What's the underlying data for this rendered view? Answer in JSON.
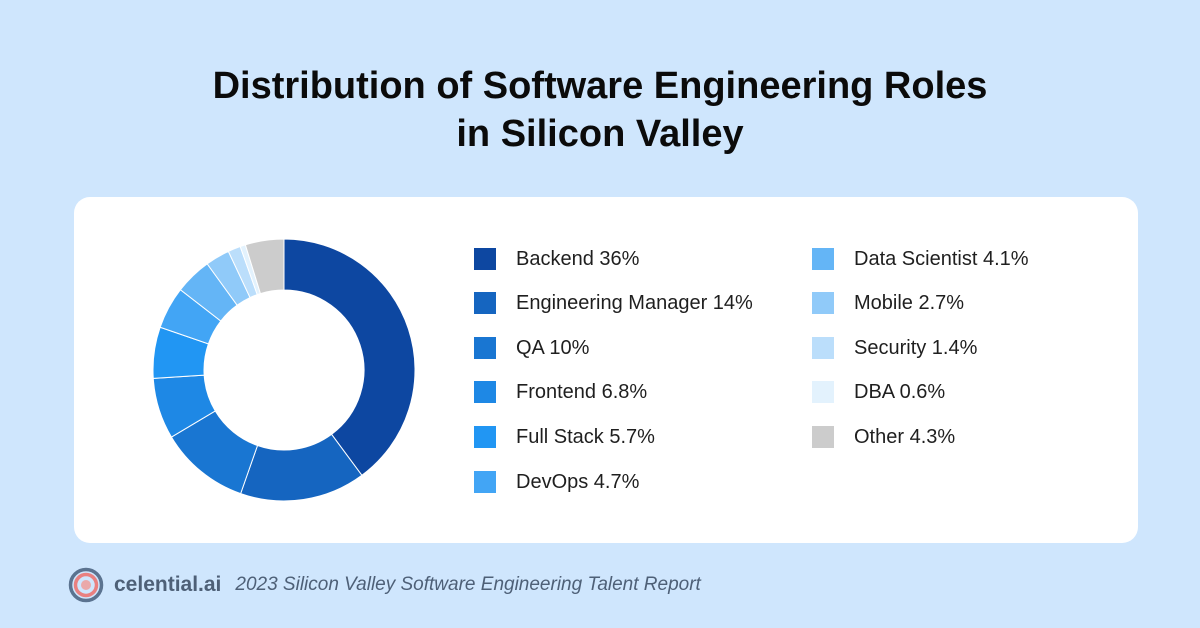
{
  "title": {
    "line1": "Distribution of Software Engineering Roles",
    "line2": "in Silicon Valley"
  },
  "chart_data": {
    "type": "pie",
    "subtype": "donut",
    "legend_placement": "right",
    "slices": [
      {
        "name": "Backend",
        "value": 36,
        "label": "Backend 36%",
        "color": "#0d47a1"
      },
      {
        "name": "Engineering Manager",
        "value": 14,
        "label": "Engineering Manager 14%",
        "color": "#1565c0"
      },
      {
        "name": "QA",
        "value": 10,
        "label": "QA 10%",
        "color": "#1976d2"
      },
      {
        "name": "Frontend",
        "value": 6.8,
        "label": "Frontend 6.8%",
        "color": "#1e88e5"
      },
      {
        "name": "Full Stack",
        "value": 5.7,
        "label": "Full Stack 5.7%",
        "color": "#2196f3"
      },
      {
        "name": "DevOps",
        "value": 4.7,
        "label": "DevOps 4.7%",
        "color": "#42a5f5"
      },
      {
        "name": "Data Scientist",
        "value": 4.1,
        "label": "Data Scientist 4.1%",
        "color": "#64b5f6"
      },
      {
        "name": "Mobile",
        "value": 2.7,
        "label": "Mobile 2.7%",
        "color": "#90caf9"
      },
      {
        "name": "Security",
        "value": 1.4,
        "label": "Security 1.4%",
        "color": "#bbdefb"
      },
      {
        "name": "DBA",
        "value": 0.6,
        "label": "DBA 0.6%",
        "color": "#e3f2fd"
      },
      {
        "name": "Other",
        "value": 4.3,
        "label": "Other 4.3%",
        "color": "#cccccc"
      }
    ]
  },
  "footer": {
    "brand": "celential.ai",
    "caption": "2023 Silicon Valley Software Engineering Talent Report",
    "logo_icon": "celential-logo-icon"
  }
}
